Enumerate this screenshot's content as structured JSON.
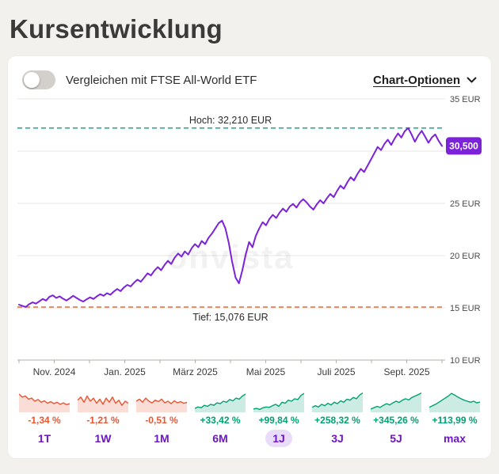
{
  "page": {
    "title": "Kursentwicklung"
  },
  "header": {
    "compare_label": "Vergleichen mit FTSE All-World ETF",
    "compare_toggle_state": "off",
    "chart_options_label": "Chart-Optionen"
  },
  "colors": {
    "line": "#7c22d9",
    "badge_bg": "#7c22d9",
    "badge_text": "#ffffff",
    "high": "#00a18c",
    "low": "#ee6a35",
    "up": "#00a173",
    "down": "#e85531",
    "period_label": "#6d16c4",
    "selected_pill": "#e9dcf8",
    "grid": "#e9e6e1",
    "axis": "#b3afa9",
    "axis_text": "#4b4a49",
    "annotation_text": "#2c2b2a"
  },
  "chart_data": {
    "type": "line",
    "unit": "EUR",
    "y_range": [
      10,
      35
    ],
    "grid_values": [
      35,
      30,
      25,
      20,
      15,
      10
    ],
    "y_ticks": [
      {
        "value": 35,
        "label": "35 EUR"
      },
      {
        "value": 25,
        "label": "25 EUR"
      },
      {
        "value": 20,
        "label": "20 EUR"
      },
      {
        "value": 15,
        "label": "15 EUR"
      },
      {
        "value": 10,
        "label": "10 EUR"
      }
    ],
    "x_ticks": [
      {
        "pos": 0.0833,
        "label": "Nov. 2024"
      },
      {
        "pos": 0.25,
        "label": "Jan. 2025"
      },
      {
        "pos": 0.4167,
        "label": "März 2025"
      },
      {
        "pos": 0.5833,
        "label": "Mai 2025"
      },
      {
        "pos": 0.75,
        "label": "Juli 2025"
      },
      {
        "pos": 0.9167,
        "label": "Sept. 2025"
      }
    ],
    "minor_tick_count": 13,
    "high": {
      "label": "Hoch: 32,210 EUR",
      "value": 32.21
    },
    "low": {
      "label": "Tief: 15,076 EUR",
      "value": 15.076
    },
    "current": {
      "label": "30,500",
      "value": 30.5
    },
    "watermark": "onvista",
    "series": [
      {
        "name": "Kurs",
        "values": [
          15.3,
          15.18,
          15.08,
          15.35,
          15.52,
          15.4,
          15.62,
          15.85,
          15.7,
          16.05,
          16.2,
          15.95,
          16.1,
          15.88,
          15.7,
          15.92,
          16.15,
          15.95,
          15.75,
          15.6,
          15.82,
          16.0,
          15.85,
          16.1,
          16.3,
          16.15,
          16.4,
          16.25,
          16.55,
          16.8,
          16.6,
          16.95,
          17.2,
          17.05,
          17.4,
          17.7,
          17.5,
          17.9,
          18.3,
          18.1,
          18.55,
          18.9,
          18.6,
          19.1,
          19.5,
          19.2,
          19.8,
          20.2,
          19.9,
          20.4,
          20.1,
          20.7,
          21.1,
          20.8,
          21.4,
          21.1,
          21.7,
          22.1,
          22.6,
          23.1,
          23.35,
          22.6,
          21.2,
          19.4,
          17.9,
          17.35,
          18.6,
          20.1,
          21.3,
          20.8,
          21.9,
          22.6,
          23.2,
          22.9,
          23.5,
          23.9,
          23.6,
          24.1,
          24.5,
          24.2,
          24.7,
          24.95,
          24.6,
          25.1,
          25.4,
          25.1,
          24.7,
          24.4,
          24.9,
          25.3,
          25.0,
          25.5,
          25.9,
          25.6,
          26.2,
          26.7,
          26.4,
          27.0,
          27.5,
          27.2,
          27.8,
          28.3,
          28.0,
          28.6,
          29.2,
          29.8,
          30.4,
          30.1,
          30.7,
          31.1,
          30.6,
          31.2,
          31.7,
          31.3,
          31.9,
          32.21,
          31.6,
          30.9,
          31.5,
          31.95,
          31.4,
          30.8,
          31.3,
          31.6,
          31.0,
          30.5
        ]
      }
    ]
  },
  "periods": [
    {
      "label": "1T",
      "change": "-1,34 %",
      "trend": "down",
      "selected": false,
      "spark": [
        0.85,
        0.7,
        0.75,
        0.6,
        0.65,
        0.5,
        0.58,
        0.45,
        0.52,
        0.4,
        0.48,
        0.38,
        0.45,
        0.35,
        0.42,
        0.33,
        0.38
      ]
    },
    {
      "label": "1W",
      "change": "-1,21 %",
      "trend": "down",
      "selected": false,
      "spark": [
        0.55,
        0.7,
        0.45,
        0.75,
        0.5,
        0.65,
        0.4,
        0.6,
        0.35,
        0.65,
        0.45,
        0.7,
        0.4,
        0.55,
        0.3,
        0.5,
        0.4
      ]
    },
    {
      "label": "1M",
      "change": "-0,51 %",
      "trend": "down",
      "selected": false,
      "spark": [
        0.5,
        0.6,
        0.45,
        0.65,
        0.5,
        0.42,
        0.55,
        0.48,
        0.6,
        0.42,
        0.5,
        0.38,
        0.52,
        0.42,
        0.48,
        0.4,
        0.44
      ]
    },
    {
      "label": "6M",
      "change": "+33,42 %",
      "trend": "up",
      "selected": false,
      "spark": [
        0.15,
        0.22,
        0.18,
        0.3,
        0.25,
        0.35,
        0.3,
        0.42,
        0.38,
        0.5,
        0.45,
        0.58,
        0.52,
        0.65,
        0.6,
        0.75,
        0.85
      ]
    },
    {
      "label": "1J",
      "change": "+99,84 %",
      "trend": "up",
      "selected": true,
      "spark": [
        0.12,
        0.15,
        0.1,
        0.18,
        0.22,
        0.2,
        0.28,
        0.35,
        0.25,
        0.45,
        0.4,
        0.55,
        0.5,
        0.62,
        0.58,
        0.78,
        0.88
      ]
    },
    {
      "label": "3J",
      "change": "+258,32 %",
      "trend": "up",
      "selected": false,
      "spark": [
        0.2,
        0.28,
        0.22,
        0.35,
        0.28,
        0.4,
        0.32,
        0.45,
        0.38,
        0.52,
        0.45,
        0.6,
        0.55,
        0.68,
        0.62,
        0.8,
        0.9
      ]
    },
    {
      "label": "5J",
      "change": "+345,26 %",
      "trend": "up",
      "selected": false,
      "spark": [
        0.12,
        0.18,
        0.25,
        0.2,
        0.3,
        0.38,
        0.32,
        0.42,
        0.5,
        0.44,
        0.55,
        0.62,
        0.56,
        0.68,
        0.75,
        0.82,
        0.9
      ]
    },
    {
      "label": "max",
      "change": "+113,99 %",
      "trend": "up",
      "selected": false,
      "spark": [
        0.2,
        0.28,
        0.35,
        0.45,
        0.55,
        0.65,
        0.75,
        0.88,
        0.8,
        0.7,
        0.62,
        0.55,
        0.5,
        0.45,
        0.5,
        0.42,
        0.46
      ]
    }
  ]
}
